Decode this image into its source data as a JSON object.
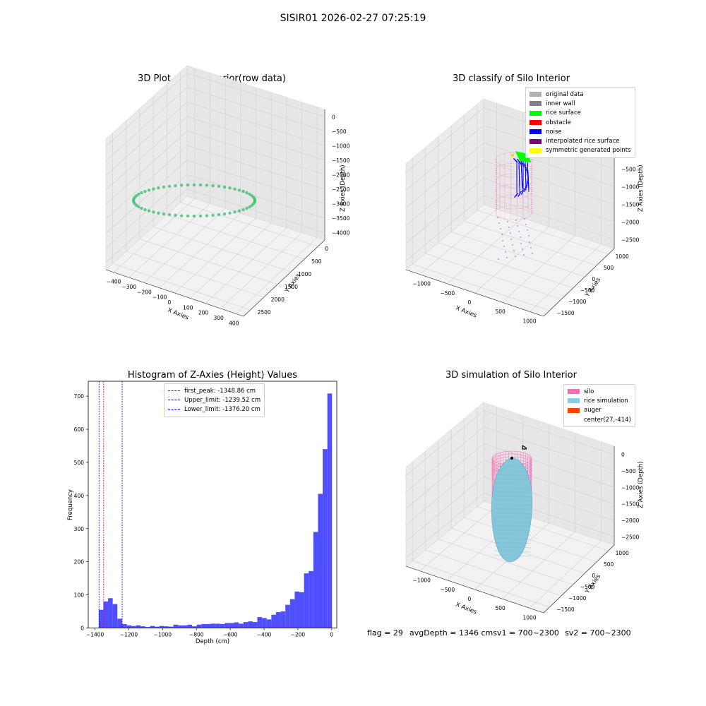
{
  "suptitle": "SISIR01 2026-02-27 07:25:19",
  "footer": {
    "flag": "flag = 29",
    "avg": "avgDepth = 1346 cmsv1 = 700~2300",
    "sv2": "sv2 = 700~2300"
  },
  "colors": {
    "hist_bar": "#4f4fff",
    "first_peak": "#e00000",
    "upper_limit": "#00008b",
    "lower_limit": "#0000ff",
    "silo_pink": "#ff69b4",
    "rice_sim": "#87c5da",
    "ring_yellow": "#f5e600",
    "ring_green": "#3cc06e"
  },
  "plot1": {
    "title": "3D Plot of Silo Interior(row data)",
    "xlabel": "X Axies",
    "ylabel": "Y Axies",
    "zlabel": "Z Axies (Depth)",
    "xticks": [
      "−400",
      "−300",
      "−200",
      "−100",
      "0",
      "100",
      "200",
      "300",
      "400"
    ],
    "yticks": [
      "0",
      "500",
      "1000",
      "1500",
      "2000",
      "2500"
    ],
    "zticks": [
      "0",
      "−500",
      "−1000",
      "−1500",
      "−2000",
      "−2500",
      "−3000",
      "−3500",
      "−4000"
    ]
  },
  "plot2": {
    "title": "3D classify of Silo Interior",
    "xlabel": "X Axies",
    "ylabel": "Y Axies",
    "zlabel": "Z Axies (Depth)",
    "xticks": [
      "−1000",
      "−500",
      "0",
      "500",
      "1000"
    ],
    "yticks": [
      "1000",
      "500",
      "0",
      "−500",
      "−1000",
      "−1500"
    ],
    "zticks": [
      "0",
      "−500",
      "−1000",
      "−1500",
      "−2000",
      "−2500"
    ],
    "legend": [
      {
        "label": "original data",
        "color": "#b0b0b0"
      },
      {
        "label": "inner wall",
        "color": "#808080"
      },
      {
        "label": "rice surface",
        "color": "#00ff00"
      },
      {
        "label": "obstacle",
        "color": "#ff0000"
      },
      {
        "label": "noise",
        "color": "#0000ff"
      },
      {
        "label": "interpolated rice surface",
        "color": "#800080"
      },
      {
        "label": "symmetric generated points",
        "color": "#ffff00"
      }
    ]
  },
  "plot3": {
    "title": "Histogram of Z-Axies (Height) Values",
    "legend": [
      {
        "label": "first_peak: -1348.86 cm",
        "color": "#e00000"
      },
      {
        "label": "Upper_limit: -1239.52 cm",
        "color": "#00008b"
      },
      {
        "label": "Lower_limit: -1376.20 cm",
        "color": "#0000ff"
      }
    ]
  },
  "plot4": {
    "title": "3D simulation of Silo Interior",
    "xlabel": "X Axies",
    "ylabel": "Y Axies",
    "zlabel": "Z Axies (Depth)",
    "xticks": [
      "−1000",
      "−500",
      "0",
      "500",
      "1000"
    ],
    "yticks": [
      "1000",
      "500",
      "0",
      "−500",
      "−1000",
      "−1500"
    ],
    "zticks": [
      "0",
      "−500",
      "−1000",
      "−1500",
      "−2000",
      "−2500"
    ],
    "legend": [
      {
        "label": "silo",
        "color": "#ff69b4"
      },
      {
        "label": "rice simulation",
        "color": "#87ceeb"
      },
      {
        "label": "auger",
        "color": "#ff4500"
      },
      {
        "label": "center(27,-414)",
        "color": ""
      }
    ]
  },
  "chart_data": {
    "type": "bar",
    "title": "Histogram of Z-Axies (Height) Values",
    "xlabel": "Depth (cm)",
    "ylabel": "Frequency",
    "xlim": [
      -1440,
      30
    ],
    "ylim": [
      0,
      745
    ],
    "xticks": [
      -1400,
      -1200,
      -1000,
      -800,
      -600,
      -400,
      -200,
      0
    ],
    "yticks": [
      0,
      100,
      200,
      300,
      400,
      500,
      600,
      700
    ],
    "bin_width": 27.6,
    "bin_left_edges": [
      -1378,
      -1350.4,
      -1322.8,
      -1295.2,
      -1267.6,
      -1240,
      -1212.4,
      -1184.8,
      -1157.2,
      -1129.6,
      -1102,
      -1074.4,
      -1046.8,
      -1019.2,
      -991.6,
      -964,
      -936.4,
      -908.8,
      -881.2,
      -853.6,
      -826,
      -798.4,
      -770.8,
      -743.2,
      -715.6,
      -688,
      -660.4,
      -632.8,
      -605.2,
      -577.6,
      -550,
      -522.4,
      -494.8,
      -467.2,
      -439.6,
      -412,
      -384.4,
      -356.8,
      -329.2,
      -301.6,
      -274,
      -246.4,
      -218.8,
      -191.2,
      -163.6,
      -136,
      -108.4,
      -80.8,
      -53.2,
      -25.6
    ],
    "values": [
      55,
      80,
      90,
      72,
      28,
      12,
      8,
      6,
      8,
      5,
      3,
      6,
      4,
      6,
      5,
      4,
      10,
      8,
      8,
      10,
      5,
      10,
      12,
      12,
      13,
      13,
      12,
      15,
      15,
      17,
      13,
      18,
      20,
      18,
      33,
      30,
      26,
      40,
      48,
      50,
      70,
      87,
      110,
      108,
      165,
      172,
      290,
      405,
      540,
      708
    ],
    "vlines": [
      {
        "name": "first_peak",
        "x": -1348.86,
        "color": "#e00000"
      },
      {
        "name": "Upper_limit",
        "x": -1239.52,
        "color": "#00008b"
      },
      {
        "name": "Lower_limit",
        "x": -1376.2,
        "color": "#0000ff"
      }
    ],
    "legend_position": "upper-center",
    "grid": false
  }
}
